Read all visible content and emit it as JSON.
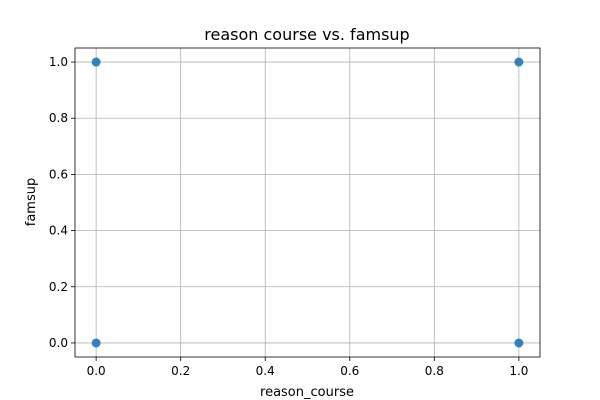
{
  "chart_data": {
    "type": "scatter",
    "title": "reason course vs. famsup",
    "xlabel": "reason_course",
    "ylabel": "famsup",
    "xlim": [
      -0.05,
      1.05
    ],
    "ylim": [
      -0.05,
      1.05
    ],
    "xticks": [
      0.0,
      0.2,
      0.4,
      0.6,
      0.8,
      1.0
    ],
    "yticks": [
      0.0,
      0.2,
      0.4,
      0.6,
      0.8,
      1.0
    ],
    "xtick_labels": [
      "0.0",
      "0.2",
      "0.4",
      "0.6",
      "0.8",
      "1.0"
    ],
    "ytick_labels": [
      "0.0",
      "0.2",
      "0.4",
      "0.6",
      "0.8",
      "1.0"
    ],
    "grid": true,
    "marker_color": "#1f77b4",
    "points": [
      {
        "x": 0,
        "y": 0
      },
      {
        "x": 0,
        "y": 1
      },
      {
        "x": 1,
        "y": 0
      },
      {
        "x": 1,
        "y": 1
      }
    ]
  }
}
